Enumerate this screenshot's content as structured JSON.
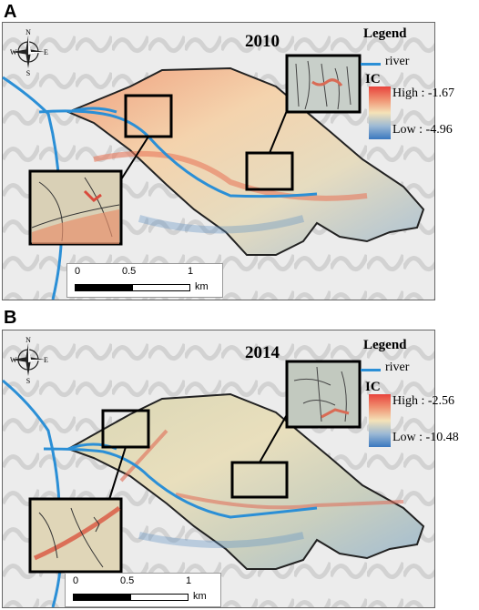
{
  "panels": [
    {
      "letter": "A",
      "year": "2010",
      "legend": {
        "title": "Legend",
        "river": "river",
        "ic": "IC",
        "high": "High : -1.67",
        "low": "Low : -4.96"
      },
      "compass": {
        "n": "N",
        "s": "S",
        "e": "E",
        "w": "W"
      },
      "scale": {
        "ticks": [
          "0",
          "0.5",
          "1"
        ],
        "unit": "km"
      }
    },
    {
      "letter": "B",
      "year": "2014",
      "legend": {
        "title": "Legend",
        "river": "river",
        "ic": "IC",
        "high": "High : -2.56",
        "low": "Low : -10.48"
      },
      "compass": {
        "n": "N",
        "s": "S",
        "e": "E",
        "w": "W"
      },
      "scale": {
        "ticks": [
          "0",
          "0.5",
          "1"
        ],
        "unit": "km"
      }
    }
  ],
  "colors": {
    "river": "#2b8fd6",
    "high": "#e8433c",
    "mid": "#f4e2b8",
    "low": "#3a78bf",
    "hillshade": "#e9e9e9"
  }
}
